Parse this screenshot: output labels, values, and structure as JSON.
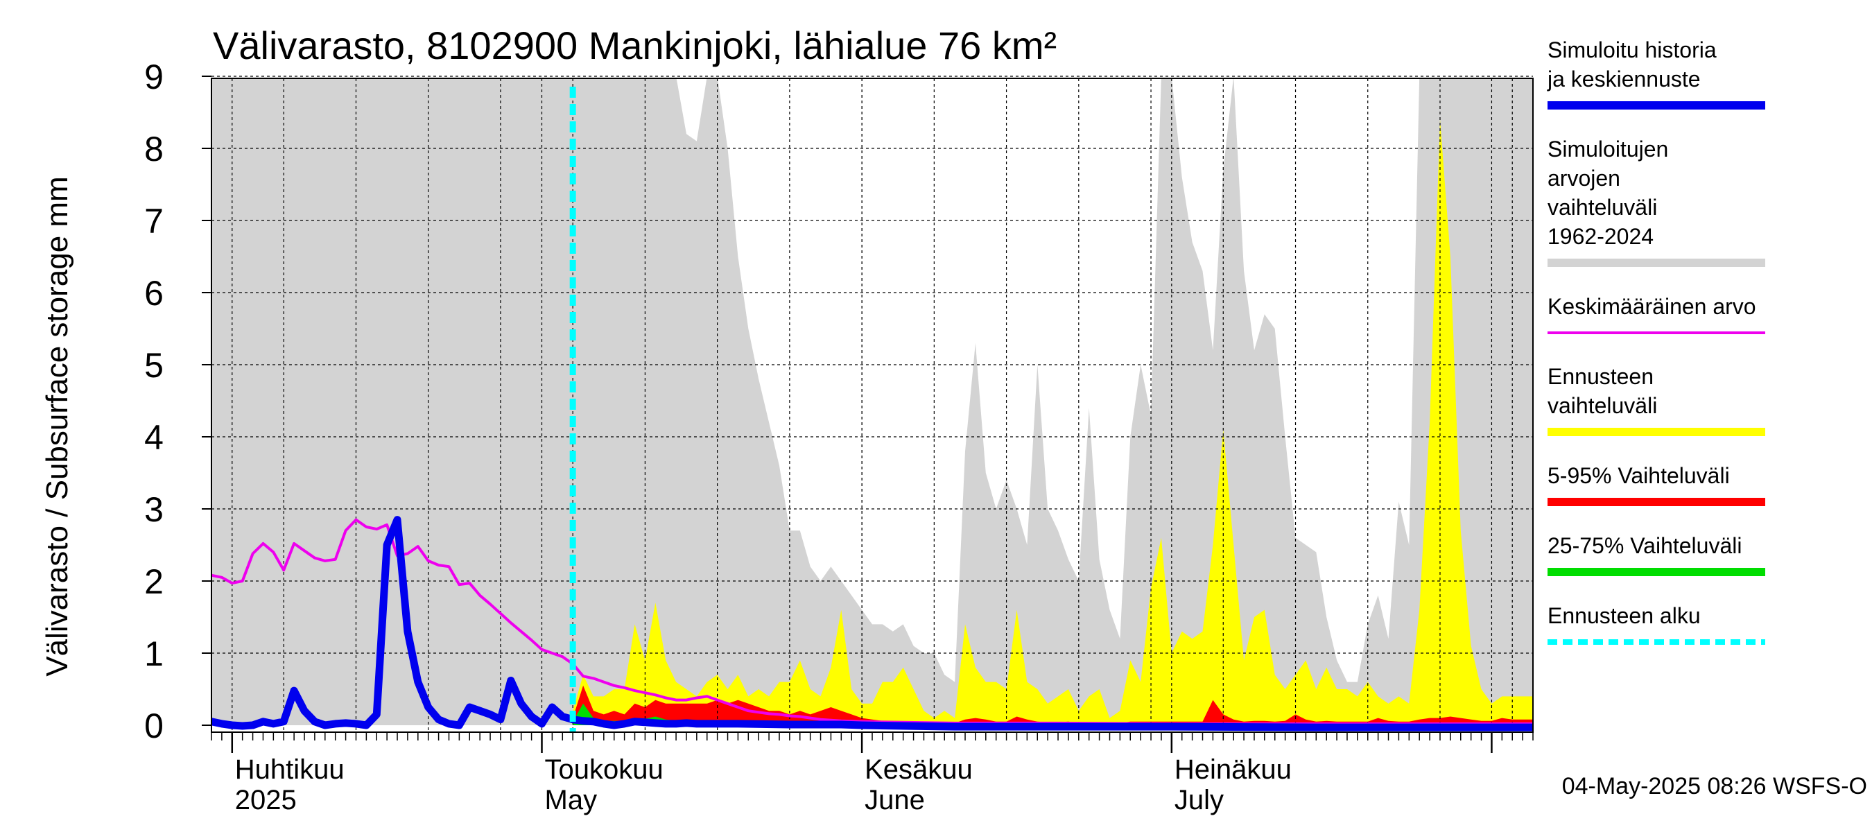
{
  "chart_data": {
    "type": "area",
    "title": "Välivarasto, 8102900 Mankinjoki, lähialue 76 km²",
    "ylabel": "Välivarasto / Subsurface storage  mm",
    "xlabel": "",
    "ylim": [
      0,
      9
    ],
    "yticks": [
      0,
      1,
      2,
      3,
      4,
      5,
      6,
      7,
      8,
      9
    ],
    "grid": true,
    "legend_position": "right",
    "x_range": [
      "2025-03-30",
      "2025-08-05"
    ],
    "x_month_labels": [
      {
        "date": "2025-04-01",
        "fi": "Huhtikuu",
        "en": "2025"
      },
      {
        "date": "2025-05-01",
        "fi": "Toukokuu",
        "en": "May"
      },
      {
        "date": "2025-06-01",
        "fi": "Kesäkuu",
        "en": "June"
      },
      {
        "date": "2025-07-01",
        "fi": "Heinäkuu",
        "en": "July"
      }
    ],
    "forecast_start": "2025-05-04",
    "footer": "04-May-2025 08:26 WSFS-O",
    "legend": [
      {
        "label": "Simuloitu historia ja keskiennuste",
        "color": "#0000ee",
        "style": "thick"
      },
      {
        "label": "Simuloitujen arvojen vaihteluväli 1962-2024",
        "color": "#d3d3d3",
        "style": "thick"
      },
      {
        "label": "Keskimääräinen arvo",
        "color": "#ee00ee",
        "style": "line"
      },
      {
        "label": "Ennusteen vaihteluväli",
        "color": "#ffff00",
        "style": "thick"
      },
      {
        "label": "5-95% Vaihteluväli",
        "color": "#ff0000",
        "style": "thick"
      },
      {
        "label": "25-75% Vaihteluväli",
        "color": "#00dd00",
        "style": "thick"
      },
      {
        "label": "Ennusteen alku",
        "color": "#00ffff",
        "style": "dashed"
      }
    ],
    "series": [
      {
        "name": "Simuloitujen arvojen vaihteluväli 1962-2024",
        "type": "band-max",
        "x": [
          "2025-03-30",
          "2025-04-15",
          "2025-05-01",
          "2025-05-12",
          "2025-05-14",
          "2025-05-15",
          "2025-05-16",
          "2025-05-17",
          "2025-05-18",
          "2025-05-19",
          "2025-05-20",
          "2025-05-21",
          "2025-05-22",
          "2025-05-23",
          "2025-05-24",
          "2025-05-25",
          "2025-05-26",
          "2025-05-27",
          "2025-05-28",
          "2025-05-29",
          "2025-05-30",
          "2025-05-31",
          "2025-06-01",
          "2025-06-02",
          "2025-06-03",
          "2025-06-04",
          "2025-06-05",
          "2025-06-06",
          "2025-06-07",
          "2025-06-08",
          "2025-06-09",
          "2025-06-10",
          "2025-06-11",
          "2025-06-12",
          "2025-06-13",
          "2025-06-14",
          "2025-06-15",
          "2025-06-16",
          "2025-06-17",
          "2025-06-18",
          "2025-06-19",
          "2025-06-20",
          "2025-06-21",
          "2025-06-22",
          "2025-06-23",
          "2025-06-24",
          "2025-06-25",
          "2025-06-26",
          "2025-06-27",
          "2025-06-28",
          "2025-06-29",
          "2025-06-30",
          "2025-07-01",
          "2025-07-02",
          "2025-07-03",
          "2025-07-04",
          "2025-07-05",
          "2025-07-06",
          "2025-07-07",
          "2025-07-08",
          "2025-07-09",
          "2025-07-10",
          "2025-07-11",
          "2025-07-12",
          "2025-07-13",
          "2025-07-14",
          "2025-07-15",
          "2025-07-16",
          "2025-07-17",
          "2025-07-18",
          "2025-07-19",
          "2025-07-20",
          "2025-07-21",
          "2025-07-22",
          "2025-07-23",
          "2025-07-24",
          "2025-07-25",
          "2025-07-26",
          "2025-07-27",
          "2025-07-28",
          "2025-07-29",
          "2025-07-30",
          "2025-07-31",
          "2025-08-01",
          "2025-08-02",
          "2025-08-03",
          "2025-08-05"
        ],
        "values": [
          9,
          9,
          9,
          9,
          9,
          8.2,
          8.1,
          9,
          9,
          8,
          6.5,
          5.5,
          4.8,
          4.2,
          3.6,
          2.7,
          2.7,
          2.2,
          2.0,
          2.2,
          2.0,
          1.8,
          1.6,
          1.4,
          1.4,
          1.3,
          1.4,
          1.1,
          1.0,
          1.0,
          0.7,
          0.6,
          3.8,
          5.3,
          3.5,
          3.0,
          3.4,
          3.0,
          2.5,
          5.0,
          3.0,
          2.7,
          2.3,
          2.0,
          4.4,
          2.3,
          1.6,
          1.2,
          4.0,
          5.0,
          4.3,
          9,
          9,
          7.6,
          6.7,
          6.3,
          5.2,
          7.7,
          9,
          6.3,
          5.2,
          5.7,
          5.5,
          4.0,
          2.6,
          2.5,
          2.4,
          1.5,
          0.9,
          0.6,
          0.6,
          1.4,
          1.8,
          1.2,
          3.1,
          2.5,
          9,
          9,
          9,
          9,
          9,
          9,
          9,
          9,
          9,
          9,
          9
        ]
      },
      {
        "name": "Ennusteen vaihteluväli",
        "type": "band-max",
        "x": [
          "2025-05-04",
          "2025-05-05",
          "2025-05-06",
          "2025-05-07",
          "2025-05-08",
          "2025-05-09",
          "2025-05-10",
          "2025-05-11",
          "2025-05-12",
          "2025-05-13",
          "2025-05-14",
          "2025-05-15",
          "2025-05-16",
          "2025-05-17",
          "2025-05-18",
          "2025-05-19",
          "2025-05-20",
          "2025-05-21",
          "2025-05-22",
          "2025-05-23",
          "2025-05-24",
          "2025-05-25",
          "2025-05-26",
          "2025-05-27",
          "2025-05-28",
          "2025-05-29",
          "2025-05-30",
          "2025-05-31",
          "2025-06-01",
          "2025-06-02",
          "2025-06-03",
          "2025-06-04",
          "2025-06-05",
          "2025-06-06",
          "2025-06-07",
          "2025-06-08",
          "2025-06-09",
          "2025-06-10",
          "2025-06-11",
          "2025-06-12",
          "2025-06-13",
          "2025-06-14",
          "2025-06-15",
          "2025-06-16",
          "2025-06-17",
          "2025-06-18",
          "2025-06-19",
          "2025-06-20",
          "2025-06-21",
          "2025-06-22",
          "2025-06-23",
          "2025-06-24",
          "2025-06-25",
          "2025-06-26",
          "2025-06-27",
          "2025-06-28",
          "2025-06-29",
          "2025-06-30",
          "2025-07-01",
          "2025-07-02",
          "2025-07-03",
          "2025-07-04",
          "2025-07-05",
          "2025-07-06",
          "2025-07-07",
          "2025-07-08",
          "2025-07-09",
          "2025-07-10",
          "2025-07-11",
          "2025-07-12",
          "2025-07-13",
          "2025-07-14",
          "2025-07-15",
          "2025-07-16",
          "2025-07-17",
          "2025-07-18",
          "2025-07-19",
          "2025-07-20",
          "2025-07-21",
          "2025-07-22",
          "2025-07-23",
          "2025-07-24",
          "2025-07-25",
          "2025-07-26",
          "2025-07-27",
          "2025-07-28",
          "2025-07-29",
          "2025-07-30",
          "2025-07-31",
          "2025-08-01",
          "2025-08-02",
          "2025-08-03",
          "2025-08-05"
        ],
        "values": [
          0.2,
          0.7,
          0.4,
          0.4,
          0.5,
          0.5,
          1.4,
          0.9,
          1.7,
          0.9,
          0.6,
          0.5,
          0.4,
          0.6,
          0.7,
          0.5,
          0.7,
          0.4,
          0.5,
          0.4,
          0.6,
          0.6,
          0.9,
          0.5,
          0.4,
          0.8,
          1.6,
          0.5,
          0.3,
          0.3,
          0.6,
          0.6,
          0.8,
          0.5,
          0.2,
          0.1,
          0.2,
          0.1,
          1.4,
          0.8,
          0.6,
          0.6,
          0.5,
          1.6,
          0.6,
          0.5,
          0.3,
          0.4,
          0.5,
          0.2,
          0.4,
          0.5,
          0.1,
          0.2,
          0.9,
          0.6,
          1.9,
          2.6,
          1.0,
          1.3,
          1.2,
          1.3,
          2.5,
          4.1,
          2.5,
          0.9,
          1.5,
          1.6,
          0.7,
          0.5,
          0.7,
          0.9,
          0.5,
          0.8,
          0.5,
          0.5,
          0.4,
          0.6,
          0.4,
          0.3,
          0.4,
          0.3,
          1.6,
          4.2,
          8.4,
          6.5,
          2.7,
          1.1,
          0.5,
          0.3,
          0.4,
          0.4,
          0.4
        ]
      },
      {
        "name": "5-95% Vaihteluväli",
        "type": "band-max",
        "x": [
          "2025-05-04",
          "2025-05-05",
          "2025-05-06",
          "2025-05-07",
          "2025-05-08",
          "2025-05-09",
          "2025-05-10",
          "2025-05-11",
          "2025-05-12",
          "2025-05-13",
          "2025-05-14",
          "2025-05-15",
          "2025-05-16",
          "2025-05-17",
          "2025-05-18",
          "2025-05-19",
          "2025-05-20",
          "2025-05-21",
          "2025-05-22",
          "2025-05-23",
          "2025-05-24",
          "2025-05-25",
          "2025-05-26",
          "2025-05-27",
          "2025-05-28",
          "2025-05-29",
          "2025-05-30",
          "2025-05-31",
          "2025-06-01",
          "2025-06-02",
          "2025-06-03",
          "2025-06-04",
          "2025-06-05",
          "2025-06-06",
          "2025-06-07",
          "2025-06-08",
          "2025-06-09",
          "2025-06-10",
          "2025-06-11",
          "2025-06-12",
          "2025-06-13",
          "2025-06-14",
          "2025-06-15",
          "2025-06-16",
          "2025-06-17",
          "2025-06-18",
          "2025-06-19",
          "2025-06-20",
          "2025-06-21",
          "2025-06-22",
          "2025-06-23",
          "2025-06-24",
          "2025-06-25",
          "2025-06-26",
          "2025-06-27",
          "2025-06-28",
          "2025-06-29",
          "2025-06-30",
          "2025-07-01",
          "2025-07-02",
          "2025-07-03",
          "2025-07-04",
          "2025-07-05",
          "2025-07-06",
          "2025-07-07",
          "2025-07-08",
          "2025-07-09",
          "2025-07-10",
          "2025-07-11",
          "2025-07-12",
          "2025-07-13",
          "2025-07-14",
          "2025-07-15",
          "2025-07-16",
          "2025-07-17",
          "2025-07-18",
          "2025-07-19",
          "2025-07-20",
          "2025-07-21",
          "2025-07-22",
          "2025-07-23",
          "2025-07-24",
          "2025-07-25",
          "2025-07-26",
          "2025-07-27",
          "2025-07-28",
          "2025-07-29",
          "2025-07-30",
          "2025-07-31",
          "2025-08-01",
          "2025-08-02",
          "2025-08-03",
          "2025-08-05"
        ],
        "values": [
          0.1,
          0.55,
          0.2,
          0.15,
          0.2,
          0.15,
          0.3,
          0.25,
          0.35,
          0.3,
          0.3,
          0.3,
          0.3,
          0.3,
          0.35,
          0.3,
          0.35,
          0.3,
          0.25,
          0.2,
          0.2,
          0.15,
          0.2,
          0.15,
          0.2,
          0.25,
          0.2,
          0.15,
          0.1,
          0.08,
          0.06,
          0.05,
          0.05,
          0.04,
          0.03,
          0.03,
          0.03,
          0.03,
          0.08,
          0.1,
          0.08,
          0.05,
          0.05,
          0.12,
          0.08,
          0.05,
          0.04,
          0.04,
          0.05,
          0.03,
          0.04,
          0.04,
          0.03,
          0.03,
          0.05,
          0.05,
          0.05,
          0.05,
          0.05,
          0.05,
          0.05,
          0.05,
          0.35,
          0.15,
          0.08,
          0.05,
          0.06,
          0.06,
          0.05,
          0.06,
          0.15,
          0.08,
          0.05,
          0.06,
          0.05,
          0.05,
          0.05,
          0.05,
          0.1,
          0.06,
          0.05,
          0.05,
          0.08,
          0.1,
          0.1,
          0.12,
          0.1,
          0.08,
          0.06,
          0.06,
          0.1,
          0.08,
          0.08
        ]
      },
      {
        "name": "25-75% Vaihteluväli",
        "type": "band-max",
        "x": [
          "2025-05-04",
          "2025-05-05",
          "2025-05-06",
          "2025-05-07",
          "2025-05-10",
          "2025-05-12",
          "2025-05-13",
          "2025-05-15",
          "2025-05-20",
          "2025-06-01",
          "2025-08-05"
        ],
        "values": [
          0.05,
          0.3,
          0.1,
          0.06,
          0.06,
          0.12,
          0.08,
          0.05,
          0.04,
          0.03,
          0.03
        ]
      },
      {
        "name": "Keskimääräinen arvo",
        "type": "line",
        "x": [
          "2025-03-30",
          "2025-03-31",
          "2025-04-01",
          "2025-04-02",
          "2025-04-03",
          "2025-04-04",
          "2025-04-05",
          "2025-04-06",
          "2025-04-07",
          "2025-04-08",
          "2025-04-09",
          "2025-04-10",
          "2025-04-11",
          "2025-04-12",
          "2025-04-13",
          "2025-04-14",
          "2025-04-15",
          "2025-04-16",
          "2025-04-17",
          "2025-04-18",
          "2025-04-19",
          "2025-04-20",
          "2025-04-21",
          "2025-04-22",
          "2025-04-23",
          "2025-04-24",
          "2025-04-25",
          "2025-04-26",
          "2025-04-27",
          "2025-04-28",
          "2025-04-29",
          "2025-04-30",
          "2025-05-01",
          "2025-05-02",
          "2025-05-03",
          "2025-05-04",
          "2025-05-05",
          "2025-05-06",
          "2025-05-07",
          "2025-05-08",
          "2025-05-09",
          "2025-05-10",
          "2025-05-11",
          "2025-05-12",
          "2025-05-13",
          "2025-05-14",
          "2025-05-15",
          "2025-05-16",
          "2025-05-17",
          "2025-05-18",
          "2025-05-19",
          "2025-05-20",
          "2025-05-21",
          "2025-05-22",
          "2025-05-23",
          "2025-05-24",
          "2025-05-25",
          "2025-05-26",
          "2025-05-27",
          "2025-05-28",
          "2025-05-29",
          "2025-05-30",
          "2025-06-01",
          "2025-06-05",
          "2025-06-10",
          "2025-06-20",
          "2025-07-01",
          "2025-07-15",
          "2025-08-05"
        ],
        "values": [
          2.08,
          2.05,
          1.97,
          2.0,
          2.38,
          2.52,
          2.4,
          2.15,
          2.52,
          2.42,
          2.32,
          2.28,
          2.3,
          2.7,
          2.85,
          2.75,
          2.72,
          2.78,
          2.35,
          2.38,
          2.48,
          2.28,
          2.22,
          2.2,
          1.95,
          1.97,
          1.8,
          1.68,
          1.55,
          1.42,
          1.3,
          1.18,
          1.05,
          1.0,
          0.95,
          0.85,
          0.68,
          0.65,
          0.6,
          0.55,
          0.52,
          0.48,
          0.45,
          0.42,
          0.38,
          0.35,
          0.35,
          0.38,
          0.4,
          0.35,
          0.3,
          0.25,
          0.2,
          0.18,
          0.16,
          0.15,
          0.13,
          0.12,
          0.1,
          0.08,
          0.07,
          0.06,
          0.05,
          0.04,
          0.03,
          0.03,
          0.02,
          0.02,
          0.02
        ]
      },
      {
        "name": "Simuloitu historia ja keskiennuste",
        "type": "line",
        "x": [
          "2025-03-30",
          "2025-03-31",
          "2025-04-01",
          "2025-04-02",
          "2025-04-03",
          "2025-04-04",
          "2025-04-05",
          "2025-04-06",
          "2025-04-07",
          "2025-04-08",
          "2025-04-09",
          "2025-04-10",
          "2025-04-11",
          "2025-04-12",
          "2025-04-13",
          "2025-04-14",
          "2025-04-15",
          "2025-04-16",
          "2025-04-17",
          "2025-04-18",
          "2025-04-19",
          "2025-04-20",
          "2025-04-21",
          "2025-04-22",
          "2025-04-23",
          "2025-04-24",
          "2025-04-25",
          "2025-04-26",
          "2025-04-27",
          "2025-04-28",
          "2025-04-29",
          "2025-04-30",
          "2025-05-01",
          "2025-05-02",
          "2025-05-03",
          "2025-05-04",
          "2025-05-05",
          "2025-05-06",
          "2025-05-07",
          "2025-05-08",
          "2025-05-09",
          "2025-05-10",
          "2025-05-11",
          "2025-05-12",
          "2025-05-13",
          "2025-05-14",
          "2025-05-15",
          "2025-05-16",
          "2025-05-20",
          "2025-05-25",
          "2025-05-30",
          "2025-06-01",
          "2025-06-05",
          "2025-06-10",
          "2025-06-20",
          "2025-07-01",
          "2025-07-15",
          "2025-08-05"
        ],
        "values": [
          0.05,
          0.02,
          0.0,
          -0.01,
          0.0,
          0.05,
          0.02,
          0.05,
          0.48,
          0.2,
          0.05,
          0.0,
          0.02,
          0.03,
          0.02,
          0.0,
          0.15,
          2.5,
          2.85,
          1.3,
          0.6,
          0.25,
          0.08,
          0.02,
          0.0,
          0.25,
          0.2,
          0.15,
          0.08,
          0.62,
          0.3,
          0.12,
          0.02,
          0.25,
          0.12,
          0.08,
          0.06,
          0.05,
          0.02,
          0.0,
          0.02,
          0.05,
          0.04,
          0.03,
          0.02,
          0.02,
          0.03,
          0.02,
          0.02,
          0.01,
          0.01,
          0.0,
          -0.01,
          -0.02,
          -0.02,
          -0.02,
          -0.03,
          -0.03
        ]
      }
    ]
  }
}
